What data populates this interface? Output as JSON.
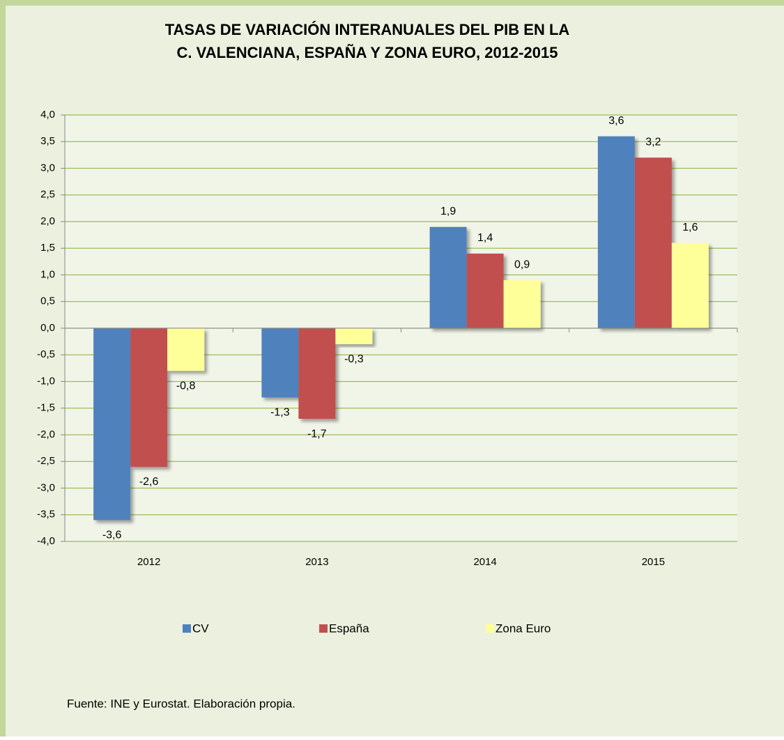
{
  "chart_data": {
    "type": "bar",
    "title": [
      "TASAS DE VARIACIÓN INTERANUALES DEL PIB EN LA",
      "C. VALENCIANA, ESPAÑA Y ZONA EURO, 2012-2015"
    ],
    "categories": [
      "2012",
      "2013",
      "2014",
      "2015"
    ],
    "series": [
      {
        "name": "CV",
        "color": "#4f81bd",
        "values": [
          -3.6,
          -1.3,
          1.9,
          3.6
        ],
        "value_labels": [
          "-3,6",
          "-1,3",
          "1,9",
          "3,6"
        ]
      },
      {
        "name": "España",
        "color": "#c0504d",
        "values": [
          -2.6,
          -1.7,
          1.4,
          3.2
        ],
        "value_labels": [
          "-2,6",
          "-1,7",
          "1,4",
          "3,2"
        ]
      },
      {
        "name": "Zona Euro",
        "color": "#ffff99",
        "values": [
          -0.8,
          -0.3,
          0.9,
          1.6
        ],
        "value_labels": [
          "-0,8",
          "-0,3",
          "0,9",
          "1,6"
        ]
      }
    ],
    "ylim": [
      -4,
      4
    ],
    "yticks": [
      {
        "value": 4,
        "label": "4,0"
      },
      {
        "value": 3.5,
        "label": "3,5"
      },
      {
        "value": 3,
        "label": "3,0"
      },
      {
        "value": 2.5,
        "label": "2,5"
      },
      {
        "value": 2,
        "label": "2,0"
      },
      {
        "value": 1.5,
        "label": "1,5"
      },
      {
        "value": 1,
        "label": "1,0"
      },
      {
        "value": 0.5,
        "label": "0,5"
      },
      {
        "value": 0,
        "label": "0,0"
      },
      {
        "value": -0.5,
        "label": "-0,5"
      },
      {
        "value": -1,
        "label": "-1,0"
      },
      {
        "value": -1.5,
        "label": "-1,5"
      },
      {
        "value": -2,
        "label": "-2,0"
      },
      {
        "value": -2.5,
        "label": "-2,5"
      },
      {
        "value": -3,
        "label": "-3,0"
      },
      {
        "value": -3.5,
        "label": "-3,5"
      },
      {
        "value": -4,
        "label": "-4,0"
      }
    ],
    "grid": true,
    "legend": "bottom",
    "source": "Fuente: INE y Eurostat. Elaboración propia."
  }
}
